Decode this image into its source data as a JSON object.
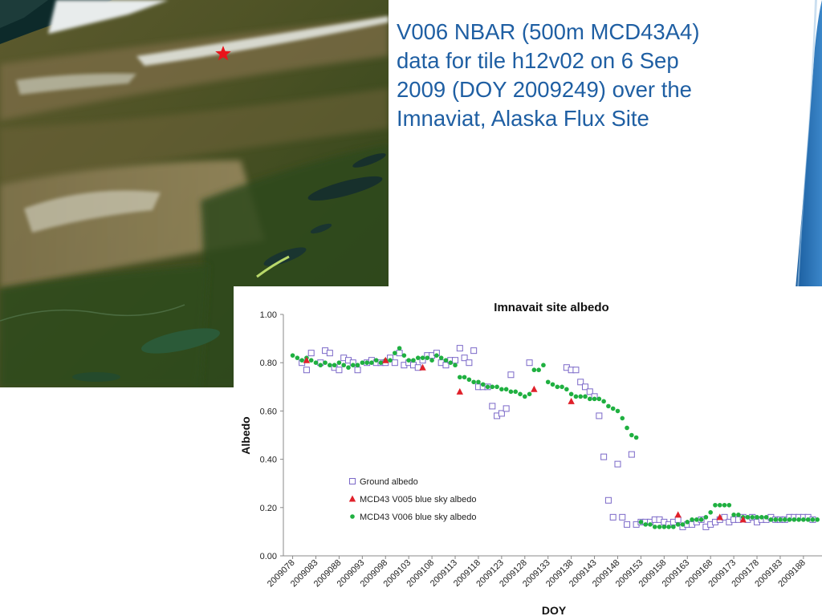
{
  "slide": {
    "title_lines": [
      "V006 NBAR  (500m MCD43A4)",
      "data for tile h12v02 on 6 Sep",
      "2009 (DOY 2009249) over the",
      "Imnaviat, Alaska Flux Site"
    ],
    "satellite_image": {
      "icon": "satellite-map-icon",
      "site_marker_icon": "red-star-icon",
      "marker_color": "#e8141b"
    },
    "accent_color": "#1f5fa3"
  },
  "chart_data": {
    "type": "scatter",
    "title": "Imnavait site albedo",
    "xlabel": "DOY",
    "ylabel": "Albedo",
    "ylim": [
      0,
      1
    ],
    "xlim": [
      2009076,
      2009192
    ],
    "yticks": [
      "0.00",
      "0.20",
      "0.40",
      "0.60",
      "0.80",
      "1.00"
    ],
    "ytick_values": [
      0,
      0.2,
      0.4,
      0.6,
      0.8,
      1.0
    ],
    "xticks": [
      "2009078",
      "2009083",
      "2009088",
      "2009093",
      "2009098",
      "2009103",
      "2009108",
      "2009113",
      "2009118",
      "2009123",
      "2009128",
      "2009133",
      "2009138",
      "2009143",
      "2009148",
      "2009153",
      "2009158",
      "2009163",
      "2009168",
      "2009173",
      "2009178",
      "2009183",
      "2009188"
    ],
    "xtick_values": [
      2009078,
      2009083,
      2009088,
      2009093,
      2009098,
      2009103,
      2009108,
      2009113,
      2009118,
      2009123,
      2009128,
      2009133,
      2009138,
      2009143,
      2009148,
      2009153,
      2009158,
      2009163,
      2009168,
      2009173,
      2009178,
      2009183,
      2009188
    ],
    "grid": false,
    "legend_position": "lower-left",
    "series": [
      {
        "name": "Ground albedo",
        "marker": "open-square",
        "color": "#7b68c8",
        "points": [
          [
            2009080,
            0.8
          ],
          [
            2009081,
            0.77
          ],
          [
            2009082,
            0.84
          ],
          [
            2009084,
            0.8
          ],
          [
            2009085,
            0.85
          ],
          [
            2009086,
            0.84
          ],
          [
            2009087,
            0.78
          ],
          [
            2009088,
            0.77
          ],
          [
            2009089,
            0.82
          ],
          [
            2009090,
            0.81
          ],
          [
            2009091,
            0.8
          ],
          [
            2009092,
            0.77
          ],
          [
            2009094,
            0.8
          ],
          [
            2009095,
            0.81
          ],
          [
            2009096,
            0.8
          ],
          [
            2009097,
            0.8
          ],
          [
            2009098,
            0.8
          ],
          [
            2009099,
            0.82
          ],
          [
            2009100,
            0.8
          ],
          [
            2009101,
            0.84
          ],
          [
            2009102,
            0.79
          ],
          [
            2009103,
            0.8
          ],
          [
            2009104,
            0.79
          ],
          [
            2009105,
            0.78
          ],
          [
            2009106,
            0.81
          ],
          [
            2009107,
            0.83
          ],
          [
            2009108,
            0.83
          ],
          [
            2009109,
            0.84
          ],
          [
            2009110,
            0.8
          ],
          [
            2009111,
            0.79
          ],
          [
            2009112,
            0.81
          ],
          [
            2009113,
            0.81
          ],
          [
            2009114,
            0.86
          ],
          [
            2009115,
            0.82
          ],
          [
            2009116,
            0.8
          ],
          [
            2009117,
            0.85
          ],
          [
            2009118,
            0.7
          ],
          [
            2009119,
            0.7
          ],
          [
            2009120,
            0.7
          ],
          [
            2009121,
            0.62
          ],
          [
            2009122,
            0.58
          ],
          [
            2009123,
            0.59
          ],
          [
            2009124,
            0.61
          ],
          [
            2009125,
            0.75
          ],
          [
            2009129,
            0.8
          ],
          [
            2009137,
            0.78
          ],
          [
            2009138,
            0.77
          ],
          [
            2009139,
            0.77
          ],
          [
            2009140,
            0.72
          ],
          [
            2009141,
            0.7
          ],
          [
            2009142,
            0.68
          ],
          [
            2009143,
            0.66
          ],
          [
            2009144,
            0.58
          ],
          [
            2009145,
            0.41
          ],
          [
            2009146,
            0.23
          ],
          [
            2009147,
            0.16
          ],
          [
            2009148,
            0.38
          ],
          [
            2009149,
            0.16
          ],
          [
            2009150,
            0.13
          ],
          [
            2009151,
            0.42
          ],
          [
            2009152,
            0.13
          ],
          [
            2009153,
            0.14
          ],
          [
            2009154,
            0.14
          ],
          [
            2009155,
            0.14
          ],
          [
            2009156,
            0.15
          ],
          [
            2009157,
            0.15
          ],
          [
            2009158,
            0.14
          ],
          [
            2009159,
            0.13
          ],
          [
            2009160,
            0.14
          ],
          [
            2009161,
            0.15
          ],
          [
            2009162,
            0.12
          ],
          [
            2009163,
            0.13
          ],
          [
            2009164,
            0.13
          ],
          [
            2009165,
            0.14
          ],
          [
            2009166,
            0.15
          ],
          [
            2009167,
            0.12
          ],
          [
            2009168,
            0.13
          ],
          [
            2009169,
            0.14
          ],
          [
            2009170,
            0.15
          ],
          [
            2009171,
            0.16
          ],
          [
            2009172,
            0.14
          ],
          [
            2009173,
            0.15
          ],
          [
            2009174,
            0.15
          ],
          [
            2009175,
            0.16
          ],
          [
            2009176,
            0.15
          ],
          [
            2009177,
            0.16
          ],
          [
            2009178,
            0.14
          ],
          [
            2009179,
            0.15
          ],
          [
            2009180,
            0.15
          ],
          [
            2009181,
            0.16
          ],
          [
            2009182,
            0.15
          ],
          [
            2009183,
            0.15
          ],
          [
            2009184,
            0.15
          ],
          [
            2009185,
            0.16
          ],
          [
            2009186,
            0.16
          ],
          [
            2009187,
            0.16
          ],
          [
            2009188,
            0.16
          ],
          [
            2009189,
            0.16
          ],
          [
            2009190,
            0.15
          ]
        ]
      },
      {
        "name": "MCD43 V005 blue sky albedo",
        "marker": "filled-triangle",
        "color": "#e0202a",
        "points": [
          [
            2009081,
            0.81
          ],
          [
            2009098,
            0.81
          ],
          [
            2009106,
            0.78
          ],
          [
            2009114,
            0.68
          ],
          [
            2009130,
            0.69
          ],
          [
            2009138,
            0.64
          ],
          [
            2009161,
            0.17
          ],
          [
            2009170,
            0.16
          ],
          [
            2009175,
            0.15
          ]
        ]
      },
      {
        "name": "MCD43 V006 blue sky albedo",
        "marker": "filled-circle",
        "color": "#1fb040",
        "points": [
          [
            2009078,
            0.83
          ],
          [
            2009079,
            0.82
          ],
          [
            2009080,
            0.81
          ],
          [
            2009081,
            0.82
          ],
          [
            2009082,
            0.81
          ],
          [
            2009083,
            0.8
          ],
          [
            2009084,
            0.79
          ],
          [
            2009085,
            0.8
          ],
          [
            2009086,
            0.79
          ],
          [
            2009087,
            0.79
          ],
          [
            2009088,
            0.8
          ],
          [
            2009089,
            0.79
          ],
          [
            2009090,
            0.78
          ],
          [
            2009091,
            0.79
          ],
          [
            2009092,
            0.79
          ],
          [
            2009093,
            0.8
          ],
          [
            2009094,
            0.8
          ],
          [
            2009095,
            0.8
          ],
          [
            2009096,
            0.81
          ],
          [
            2009097,
            0.8
          ],
          [
            2009098,
            0.81
          ],
          [
            2009099,
            0.81
          ],
          [
            2009100,
            0.84
          ],
          [
            2009101,
            0.86
          ],
          [
            2009102,
            0.83
          ],
          [
            2009103,
            0.81
          ],
          [
            2009104,
            0.81
          ],
          [
            2009105,
            0.82
          ],
          [
            2009106,
            0.82
          ],
          [
            2009107,
            0.82
          ],
          [
            2009108,
            0.81
          ],
          [
            2009109,
            0.83
          ],
          [
            2009110,
            0.82
          ],
          [
            2009111,
            0.81
          ],
          [
            2009112,
            0.8
          ],
          [
            2009113,
            0.79
          ],
          [
            2009114,
            0.74
          ],
          [
            2009115,
            0.74
          ],
          [
            2009116,
            0.73
          ],
          [
            2009117,
            0.72
          ],
          [
            2009118,
            0.72
          ],
          [
            2009119,
            0.71
          ],
          [
            2009120,
            0.7
          ],
          [
            2009121,
            0.7
          ],
          [
            2009122,
            0.7
          ],
          [
            2009123,
            0.69
          ],
          [
            2009124,
            0.69
          ],
          [
            2009125,
            0.68
          ],
          [
            2009126,
            0.68
          ],
          [
            2009127,
            0.67
          ],
          [
            2009128,
            0.66
          ],
          [
            2009129,
            0.67
          ],
          [
            2009130,
            0.77
          ],
          [
            2009131,
            0.77
          ],
          [
            2009132,
            0.79
          ],
          [
            2009133,
            0.72
          ],
          [
            2009134,
            0.71
          ],
          [
            2009135,
            0.7
          ],
          [
            2009136,
            0.7
          ],
          [
            2009137,
            0.69
          ],
          [
            2009138,
            0.67
          ],
          [
            2009139,
            0.66
          ],
          [
            2009140,
            0.66
          ],
          [
            2009141,
            0.66
          ],
          [
            2009142,
            0.65
          ],
          [
            2009143,
            0.65
          ],
          [
            2009144,
            0.65
          ],
          [
            2009145,
            0.64
          ],
          [
            2009146,
            0.62
          ],
          [
            2009147,
            0.61
          ],
          [
            2009148,
            0.6
          ],
          [
            2009149,
            0.57
          ],
          [
            2009150,
            0.53
          ],
          [
            2009151,
            0.5
          ],
          [
            2009152,
            0.49
          ],
          [
            2009153,
            0.14
          ],
          [
            2009154,
            0.13
          ],
          [
            2009155,
            0.13
          ],
          [
            2009156,
            0.12
          ],
          [
            2009157,
            0.12
          ],
          [
            2009158,
            0.12
          ],
          [
            2009159,
            0.12
          ],
          [
            2009160,
            0.12
          ],
          [
            2009161,
            0.13
          ],
          [
            2009162,
            0.13
          ],
          [
            2009163,
            0.14
          ],
          [
            2009164,
            0.15
          ],
          [
            2009165,
            0.15
          ],
          [
            2009166,
            0.15
          ],
          [
            2009167,
            0.16
          ],
          [
            2009168,
            0.18
          ],
          [
            2009169,
            0.21
          ],
          [
            2009170,
            0.21
          ],
          [
            2009171,
            0.21
          ],
          [
            2009172,
            0.21
          ],
          [
            2009173,
            0.17
          ],
          [
            2009174,
            0.17
          ],
          [
            2009175,
            0.16
          ],
          [
            2009176,
            0.16
          ],
          [
            2009177,
            0.16
          ],
          [
            2009178,
            0.16
          ],
          [
            2009179,
            0.16
          ],
          [
            2009180,
            0.16
          ],
          [
            2009181,
            0.15
          ],
          [
            2009182,
            0.15
          ],
          [
            2009183,
            0.15
          ],
          [
            2009184,
            0.15
          ],
          [
            2009185,
            0.15
          ],
          [
            2009186,
            0.15
          ],
          [
            2009187,
            0.15
          ],
          [
            2009188,
            0.15
          ],
          [
            2009189,
            0.15
          ],
          [
            2009190,
            0.15
          ],
          [
            2009191,
            0.15
          ]
        ]
      }
    ]
  }
}
